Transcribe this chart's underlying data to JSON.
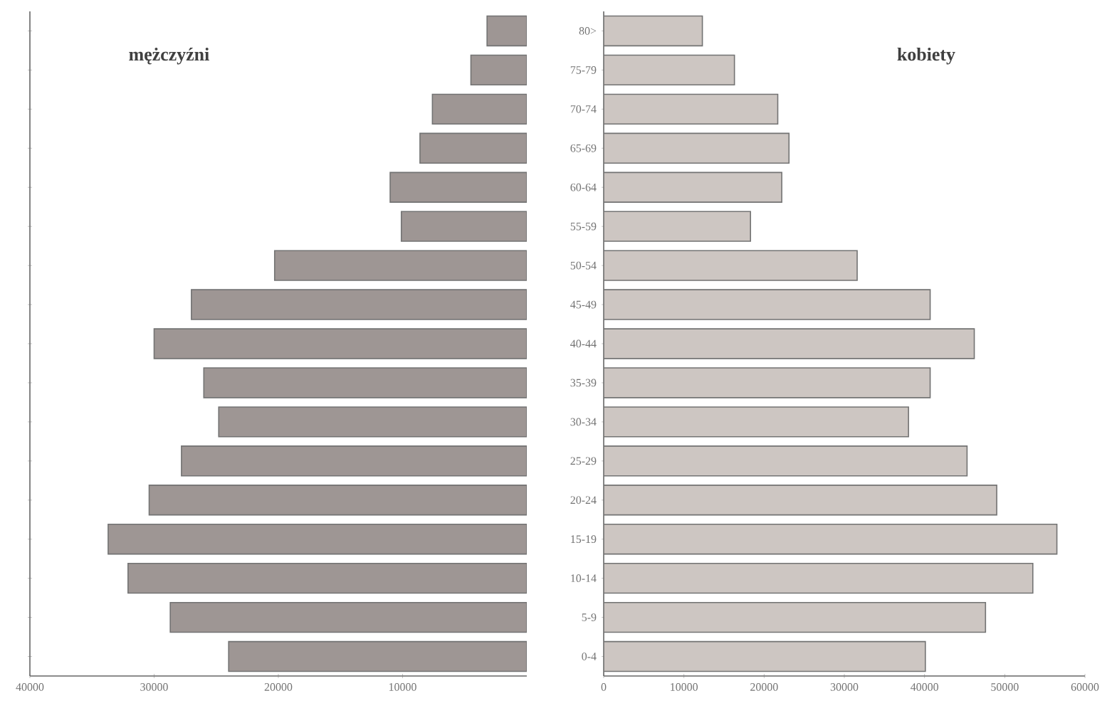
{
  "chart_data": [
    {
      "type": "bar",
      "orientation": "horizontal",
      "title": "mężczyźni",
      "categories": [
        null,
        null,
        null,
        null,
        null,
        null,
        null,
        null,
        null,
        null,
        null,
        null,
        null,
        null,
        null,
        null,
        null
      ],
      "values": [
        3200,
        4500,
        7600,
        8600,
        11000,
        10100,
        20300,
        27000,
        30000,
        26000,
        24800,
        27800,
        30400,
        33700,
        32100,
        28700,
        24000
      ],
      "color": "#9e9694",
      "xlim": [
        40000,
        0
      ],
      "xticks": [
        40000,
        30000,
        20000,
        10000
      ],
      "tick_labels": "x"
    },
    {
      "type": "bar",
      "orientation": "horizontal",
      "title": "kobiety",
      "categories": [
        "80>",
        "75-79",
        "70-74",
        "65-69",
        "60-64",
        "55-59",
        "50-54",
        "45-49",
        "40-44",
        "35-39",
        "30-34",
        "25-29",
        "20-24",
        "15-19",
        "10-14",
        "5-9",
        "0-4"
      ],
      "values": [
        12300,
        16300,
        21700,
        23100,
        22200,
        18300,
        31600,
        40700,
        46200,
        40700,
        38000,
        45300,
        49000,
        56500,
        53500,
        47600,
        40100
      ],
      "color": "#cdc6c2",
      "xlim": [
        0,
        60000
      ],
      "xticks": [
        0,
        10000,
        20000,
        30000,
        40000,
        50000,
        60000
      ]
    }
  ]
}
